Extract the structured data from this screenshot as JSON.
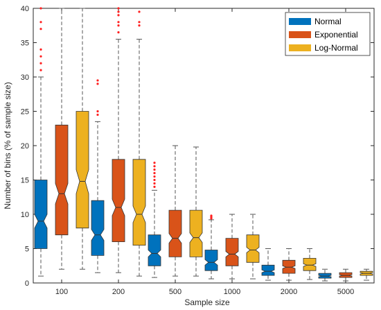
{
  "chart_data": {
    "type": "boxplot",
    "xlabel": "Sample size",
    "ylabel": "Number of bins (% of sample size)",
    "ylim": [
      0,
      40
    ],
    "yticks": [
      0,
      5,
      10,
      15,
      20,
      25,
      30,
      35,
      40
    ],
    "categories": [
      "100",
      "200",
      "500",
      "1000",
      "2000",
      "5000"
    ],
    "notched": true,
    "grid": false,
    "legend_position": "top-right",
    "series": [
      {
        "name": "Normal",
        "color": "#0072BD",
        "boxes": [
          {
            "whisker_low": 1,
            "q1": 5,
            "median": 9,
            "q3": 15,
            "whisker_high": 30,
            "notch_low": 8,
            "notch_high": 10,
            "outliers": [
              31,
              32,
              33,
              34,
              37,
              38,
              40
            ]
          },
          {
            "whisker_low": 1.5,
            "q1": 4,
            "median": 7,
            "q3": 12,
            "whisker_high": 23.5,
            "notch_low": 6.2,
            "notch_high": 7.8,
            "outliers": [
              24.5,
              25,
              29,
              29.5
            ]
          },
          {
            "whisker_low": 0.8,
            "q1": 2.5,
            "median": 4.3,
            "q3": 7,
            "whisker_high": 13.5,
            "notch_low": 3.8,
            "notch_high": 4.8,
            "outliers": [
              14,
              14.5,
              15,
              15.5,
              16,
              16.5,
              17,
              17.5
            ]
          },
          {
            "whisker_low": 0.6,
            "q1": 1.8,
            "median": 3,
            "q3": 4.8,
            "whisker_high": 9.2,
            "notch_low": 2.6,
            "notch_high": 3.4,
            "outliers": [
              9.4,
              9.6,
              9.8
            ]
          },
          {
            "whisker_low": 0.4,
            "q1": 1.1,
            "median": 1.7,
            "q3": 2.6,
            "whisker_high": 5,
            "notch_low": 1.5,
            "notch_high": 1.9,
            "outliers": []
          },
          {
            "whisker_low": 0.3,
            "q1": 0.7,
            "median": 1,
            "q3": 1.4,
            "whisker_high": 2,
            "notch_low": 0.9,
            "notch_high": 1.1,
            "outliers": []
          }
        ]
      },
      {
        "name": "Exponential",
        "color": "#D95319",
        "boxes": [
          {
            "whisker_low": 2,
            "q1": 7,
            "median": 13,
            "q3": 23,
            "whisker_high": 40,
            "notch_low": 11.5,
            "notch_high": 14.5,
            "outliers": []
          },
          {
            "whisker_low": 1.5,
            "q1": 6,
            "median": 11,
            "q3": 18,
            "whisker_high": 35.5,
            "notch_low": 9.8,
            "notch_high": 12.2,
            "outliers": [
              36.5,
              37.5,
              38,
              39,
              39.5,
              40
            ]
          },
          {
            "whisker_low": 1,
            "q1": 3.8,
            "median": 6.5,
            "q3": 10.6,
            "whisker_high": 20,
            "notch_low": 5.8,
            "notch_high": 7.2,
            "outliers": []
          },
          {
            "whisker_low": 0.6,
            "q1": 2.5,
            "median": 4.2,
            "q3": 6.5,
            "whisker_high": 10,
            "notch_low": 3.8,
            "notch_high": 4.6,
            "outliers": []
          },
          {
            "whisker_low": 0.4,
            "q1": 1.4,
            "median": 2.3,
            "q3": 3.3,
            "whisker_high": 5,
            "notch_low": 2.1,
            "notch_high": 2.5,
            "outliers": []
          },
          {
            "whisker_low": 0.3,
            "q1": 0.8,
            "median": 1.1,
            "q3": 1.5,
            "whisker_high": 2,
            "notch_low": 1.0,
            "notch_high": 1.2,
            "outliers": []
          }
        ]
      },
      {
        "name": "Log-Normal",
        "color": "#EDB120",
        "boxes": [
          {
            "whisker_low": 2,
            "q1": 8,
            "median": 14.8,
            "q3": 25,
            "whisker_high": 40,
            "notch_low": 13,
            "notch_high": 16.5,
            "outliers": []
          },
          {
            "whisker_low": 1,
            "q1": 5.5,
            "median": 10,
            "q3": 18,
            "whisker_high": 35.5,
            "notch_low": 8.8,
            "notch_high": 11.2,
            "outliers": [
              37.5,
              38,
              39.5
            ]
          },
          {
            "whisker_low": 1,
            "q1": 3.8,
            "median": 6.6,
            "q3": 10.6,
            "whisker_high": 19.8,
            "notch_low": 5.9,
            "notch_high": 7.3,
            "outliers": []
          },
          {
            "whisker_low": 0.6,
            "q1": 3,
            "median": 4.8,
            "q3": 7,
            "whisker_high": 10,
            "notch_low": 4.4,
            "notch_high": 5.2,
            "outliers": []
          },
          {
            "whisker_low": 0.5,
            "q1": 1.8,
            "median": 2.6,
            "q3": 3.6,
            "whisker_high": 5,
            "notch_low": 2.4,
            "notch_high": 2.8,
            "outliers": []
          },
          {
            "whisker_low": 0.4,
            "q1": 1.1,
            "median": 1.4,
            "q3": 1.7,
            "whisker_high": 2,
            "notch_low": 1.3,
            "notch_high": 1.5,
            "outliers": []
          }
        ]
      }
    ]
  }
}
